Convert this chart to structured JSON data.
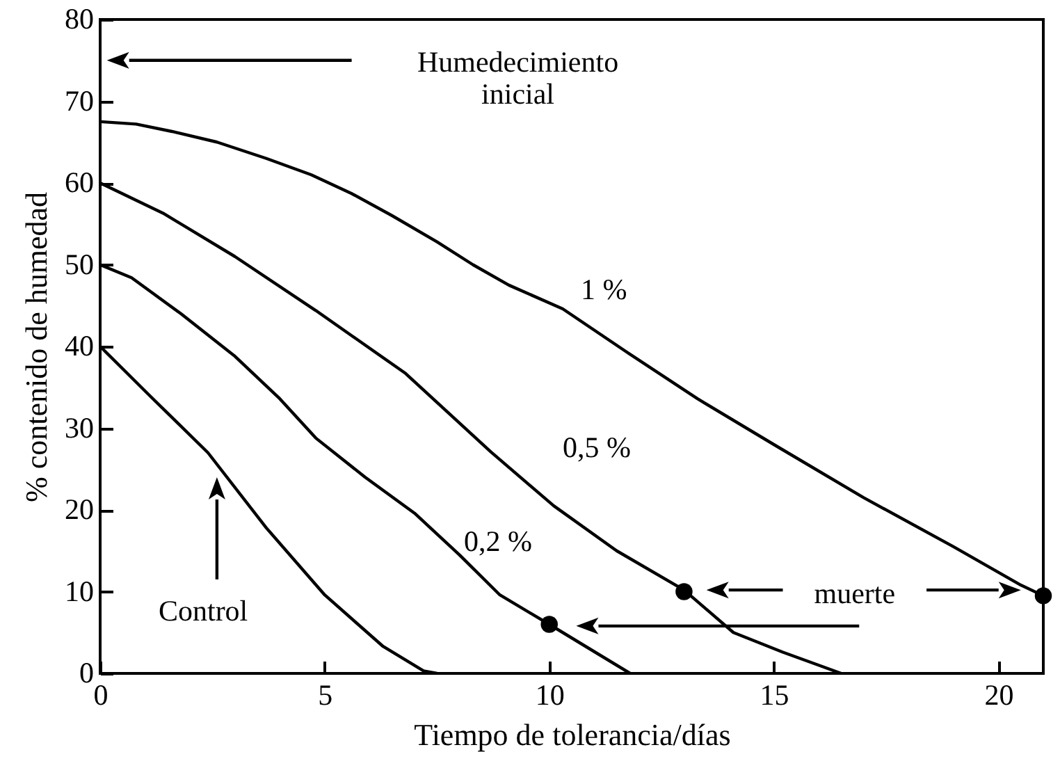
{
  "chart_data": {
    "type": "line",
    "xlabel": "Tiempo  de  tolerancia/días",
    "ylabel": "% contenido de humedad",
    "xlim": [
      0,
      21
    ],
    "xticks": [
      0,
      5,
      10,
      15,
      20
    ],
    "ylim": [
      0,
      80
    ],
    "yticks": [
      0,
      10,
      20,
      30,
      40,
      50,
      60,
      70,
      80
    ],
    "grid": false,
    "marker": "none",
    "line_style": "solid",
    "annotations": [
      "Humedecimiento inicial",
      "muerte"
    ],
    "series": [
      {
        "name": "1 %",
        "color": "#000000",
        "x": [
          0,
          0.8,
          1.6,
          2.6,
          3.7,
          4.7,
          5.6,
          6.5,
          7.5,
          8.3,
          9.1,
          10.3,
          11.7,
          13.3,
          15,
          17,
          19,
          20.5,
          21
        ],
        "values": [
          67.5,
          67.2,
          66.3,
          65,
          63,
          61,
          58.7,
          56,
          52.8,
          50,
          47.5,
          44.6,
          39.4,
          33.6,
          28,
          21.5,
          15.5,
          10.8,
          9.5
        ]
      },
      {
        "name": "0,5 %",
        "color": "#000000",
        "x": [
          0,
          1.4,
          3,
          4.8,
          6.8,
          8.7,
          10.1,
          11.5,
          13,
          14.1,
          15.2,
          16,
          16.5
        ],
        "values": [
          60,
          56.3,
          51,
          44.4,
          36.7,
          27.1,
          20.5,
          15,
          10.2,
          5,
          2.6,
          1,
          0
        ]
      },
      {
        "name": "0,2 %",
        "color": "#000000",
        "x": [
          0,
          0.7,
          1.8,
          3,
          4,
          4.8,
          5.9,
          7,
          8,
          8.9,
          10,
          10.9,
          11.8
        ],
        "values": [
          50,
          48.4,
          44,
          38.8,
          33.6,
          28.8,
          24,
          19.6,
          14.5,
          9.6,
          6,
          3,
          0
        ]
      },
      {
        "name": "Control",
        "color": "#000000",
        "x": [
          0,
          1.1,
          2.4,
          3.7,
          5,
          6.3,
          7.2,
          7.5
        ],
        "values": [
          40,
          34,
          27,
          17.8,
          9.6,
          3.3,
          0.3,
          0
        ]
      },
      {
        "type": "scatter",
        "marker": "circle",
        "color": "#000000",
        "x": [
          10,
          13,
          21
        ],
        "values": [
          6,
          10,
          9.5
        ]
      }
    ]
  }
}
